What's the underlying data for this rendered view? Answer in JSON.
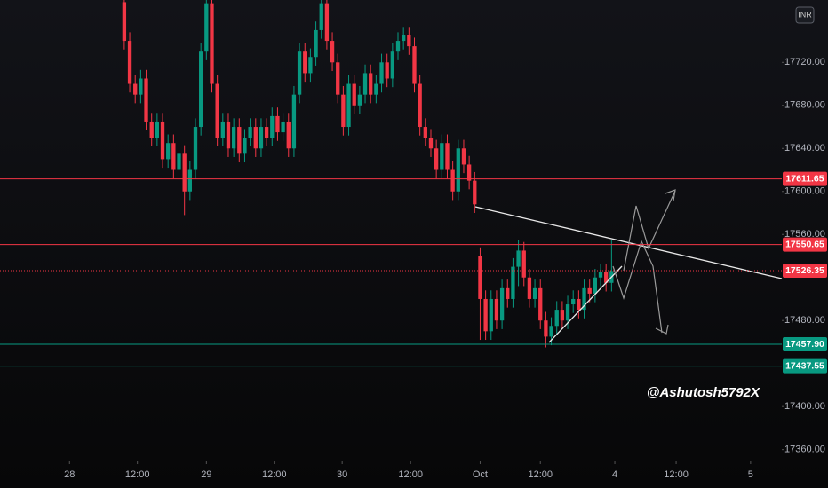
{
  "chart_data": {
    "type": "candlestick",
    "currency": "INR",
    "watermark": "@Ashutosh5792X",
    "up_color": "#089981",
    "down_color": "#f23645",
    "grid": false,
    "open": [
      17776,
      17740,
      17700,
      17690,
      17705,
      17665,
      17650,
      17665,
      17630,
      17645,
      17620,
      17635,
      17600,
      17620,
      17660,
      17730,
      17775,
      17700,
      17650,
      17665,
      17640,
      17660,
      17635,
      17650,
      17660,
      17640,
      17660,
      17650,
      17670,
      17655,
      17665,
      17640,
      17690,
      17730,
      17710,
      17725,
      17750,
      17775,
      17740,
      17720,
      17690,
      17660,
      17700,
      17680,
      17690,
      17710,
      17690,
      17700,
      17720,
      17705,
      17730,
      17740,
      17745,
      17735,
      17700,
      17660,
      17650,
      17640,
      17620,
      17645,
      17620,
      17600,
      17640,
      17625,
      17610,
      17540,
      17500,
      17470,
      17500,
      17480,
      17510,
      17500,
      17530,
      17545,
      17520,
      17500,
      17510,
      17480,
      17465,
      17475,
      17490,
      17480,
      17495,
      17500,
      17490,
      17510,
      17505,
      17520,
      17525,
      17515
    ],
    "high": [
      17778,
      17748,
      17708,
      17713,
      17713,
      17673,
      17673,
      17673,
      17653,
      17653,
      17643,
      17643,
      17628,
      17668,
      17738,
      17783,
      17783,
      17708,
      17673,
      17673,
      17668,
      17668,
      17658,
      17668,
      17668,
      17668,
      17668,
      17678,
      17678,
      17673,
      17673,
      17698,
      17738,
      17738,
      17733,
      17758,
      17783,
      17783,
      17748,
      17728,
      17698,
      17708,
      17708,
      17698,
      17718,
      17718,
      17708,
      17728,
      17728,
      17738,
      17748,
      17753,
      17753,
      17743,
      17708,
      17668,
      17658,
      17648,
      17653,
      17653,
      17628,
      17648,
      17648,
      17633,
      17618,
      17548,
      17508,
      17508,
      17508,
      17518,
      17518,
      17538,
      17555,
      17553,
      17528,
      17518,
      17518,
      17488,
      17483,
      17498,
      17498,
      17503,
      17508,
      17508,
      17518,
      17518,
      17528,
      17533,
      17533,
      17555
    ],
    "low": [
      17732,
      17692,
      17682,
      17682,
      17657,
      17642,
      17642,
      17622,
      17622,
      17612,
      17612,
      17578,
      17592,
      17612,
      17652,
      17722,
      17692,
      17642,
      17642,
      17632,
      17632,
      17627,
      17627,
      17642,
      17632,
      17632,
      17642,
      17642,
      17647,
      17647,
      17632,
      17632,
      17682,
      17702,
      17702,
      17717,
      17742,
      17732,
      17712,
      17682,
      17652,
      17652,
      17672,
      17672,
      17682,
      17682,
      17682,
      17692,
      17697,
      17697,
      17722,
      17732,
      17727,
      17692,
      17652,
      17642,
      17632,
      17612,
      17612,
      17612,
      17592,
      17592,
      17617,
      17602,
      17580,
      17462,
      17462,
      17462,
      17472,
      17472,
      17492,
      17492,
      17512,
      17512,
      17492,
      17492,
      17472,
      17455,
      17457,
      17467,
      17472,
      17472,
      17487,
      17482,
      17482,
      17497,
      17497,
      17512,
      17507,
      17507
    ],
    "close": [
      17740,
      17700,
      17690,
      17705,
      17665,
      17650,
      17665,
      17630,
      17645,
      17620,
      17635,
      17600,
      17620,
      17660,
      17730,
      17775,
      17700,
      17650,
      17665,
      17640,
      17660,
      17635,
      17650,
      17660,
      17640,
      17660,
      17650,
      17670,
      17655,
      17665,
      17640,
      17690,
      17730,
      17710,
      17725,
      17750,
      17775,
      17740,
      17720,
      17690,
      17660,
      17700,
      17680,
      17690,
      17710,
      17690,
      17700,
      17720,
      17705,
      17730,
      17740,
      17745,
      17735,
      17700,
      17660,
      17650,
      17640,
      17620,
      17645,
      17620,
      17600,
      17640,
      17625,
      17610,
      17588,
      17500,
      17470,
      17500,
      17480,
      17510,
      17500,
      17530,
      17545,
      17520,
      17500,
      17510,
      17480,
      17465,
      17475,
      17490,
      17480,
      17495,
      17500,
      17490,
      17510,
      17505,
      17520,
      17525,
      17515,
      17526
    ],
    "xlim": [
      -22.7,
      120.1
    ],
    "xticks": [
      {
        "value": -10,
        "label": "28"
      },
      {
        "value": 2.4,
        "label": "12:00"
      },
      {
        "value": 15,
        "label": "29"
      },
      {
        "value": 27.4,
        "label": "12:00"
      },
      {
        "value": 39.8,
        "label": "30"
      },
      {
        "value": 52.3,
        "label": "12:00"
      },
      {
        "value": 65,
        "label": "Oct"
      },
      {
        "value": 76,
        "label": "12:00"
      },
      {
        "value": 89.6,
        "label": "4"
      },
      {
        "value": 100.8,
        "label": "12:00"
      },
      {
        "value": 114.4,
        "label": "5"
      }
    ],
    "ylim": [
      17349,
      17778
    ],
    "yticks": [
      {
        "value": 17360,
        "label": "17360.00"
      },
      {
        "value": 17400,
        "label": "17400.00"
      },
      {
        "value": 17480,
        "label": "17480.00"
      },
      {
        "value": 17560,
        "label": "17560.00"
      },
      {
        "value": 17600,
        "label": "17600.00"
      },
      {
        "value": 17640,
        "label": "17640.00"
      },
      {
        "value": 17680,
        "label": "17680.00"
      },
      {
        "value": 17720,
        "label": "17720.00"
      }
    ],
    "price_lines": {
      "values": [
        17611.65,
        17550.65,
        17526.35,
        17457.9,
        17437.55
      ],
      "value_labels": [
        "17611.65",
        "17550.65",
        "17526.35",
        "17457.90",
        "17437.55"
      ],
      "colors": [
        "#f23645",
        "#f23645",
        "#f23645",
        "#089981",
        "#089981"
      ],
      "dashed": [
        false,
        false,
        true,
        false,
        false
      ]
    }
  }
}
